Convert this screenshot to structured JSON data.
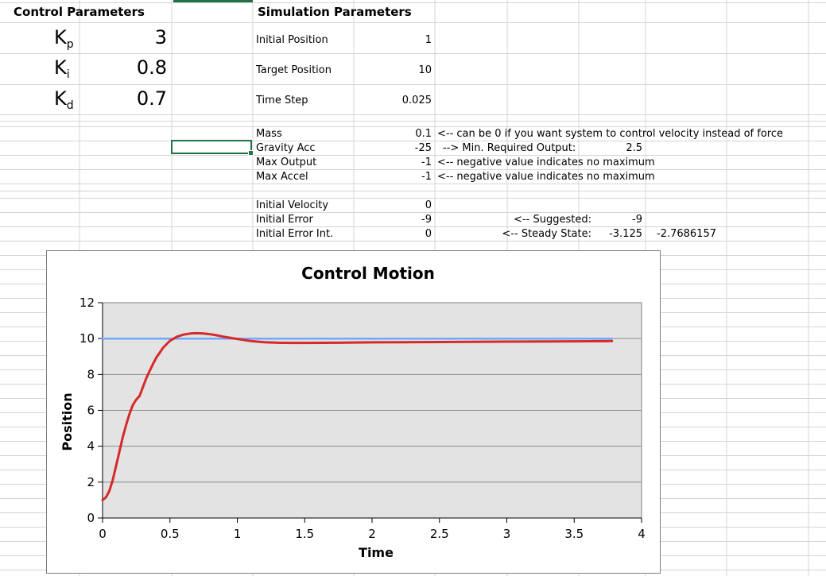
{
  "control": {
    "header": "Control Parameters",
    "params": [
      {
        "base": "K",
        "sub": "p",
        "value": "3"
      },
      {
        "base": "K",
        "sub": "i",
        "value": "0.8"
      },
      {
        "base": "K",
        "sub": "d",
        "value": "0.7"
      }
    ]
  },
  "simulation": {
    "header": "Simulation Parameters",
    "rows": [
      {
        "label": "Initial Position",
        "value": "1"
      },
      {
        "label": "Target Position",
        "value": "10"
      },
      {
        "label": "Time Step",
        "value": "0.025"
      }
    ],
    "physics": [
      {
        "label": "Mass",
        "value": "0.1",
        "note": "<-- can be 0 if you want system to control velocity instead of force"
      },
      {
        "label": "Gravity Acc",
        "value": "-25",
        "note": "--> Min. Required Output:",
        "extra": "2.5"
      },
      {
        "label": "Max Output",
        "value": "-1",
        "note": "<-- negative value indicates no maximum"
      },
      {
        "label": "Max Accel",
        "value": "-1",
        "note": "<-- negative value indicates no maximum"
      }
    ],
    "initial": [
      {
        "label": "Initial Velocity",
        "value": "0"
      },
      {
        "label": "Initial Error",
        "value": "-9",
        "note": "<-- Suggested:",
        "extra": "-9"
      },
      {
        "label": "Initial Error Int.",
        "value": "0",
        "note": "<-- Steady State:",
        "extra": "-3.125",
        "extra2": "-2.7686157"
      }
    ]
  },
  "colors": {
    "grid": "#d4d4d4",
    "selection": "#217346",
    "plot_bg": "#e3e3e3",
    "target_line": "#6fa8ff",
    "motion_line": "#d62a2a"
  },
  "chart_data": {
    "type": "line",
    "title": "Control Motion",
    "xlabel": "Time",
    "ylabel": "Position",
    "xlim": [
      0,
      4
    ],
    "ylim": [
      0,
      12
    ],
    "xticks": [
      "0",
      "0.5",
      "1",
      "1.5",
      "2",
      "2.5",
      "3",
      "3.5",
      "4"
    ],
    "yticks": [
      "0",
      "2",
      "4",
      "6",
      "8",
      "10",
      "12"
    ],
    "grid": true,
    "series": [
      {
        "color": "#6fa8ff",
        "x": [
          0,
          3.78
        ],
        "y": [
          10,
          10
        ]
      },
      {
        "color": "#d62a2a",
        "x": [
          0,
          0.025,
          0.05,
          0.075,
          0.1,
          0.125,
          0.15,
          0.175,
          0.2,
          0.225,
          0.25,
          0.275,
          0.3,
          0.325,
          0.35,
          0.375,
          0.4,
          0.45,
          0.5,
          0.55,
          0.6,
          0.65,
          0.7,
          0.75,
          0.8,
          0.85,
          0.9,
          1.0,
          1.1,
          1.2,
          1.3,
          1.4,
          1.5,
          1.75,
          2.0,
          2.5,
          3.0,
          3.5,
          3.78
        ],
        "y": [
          1.0,
          1.15,
          1.5,
          2.1,
          2.9,
          3.7,
          4.5,
          5.2,
          5.8,
          6.3,
          6.6,
          6.8,
          7.3,
          7.8,
          8.2,
          8.6,
          8.95,
          9.5,
          9.88,
          10.1,
          10.22,
          10.28,
          10.3,
          10.28,
          10.24,
          10.18,
          10.1,
          9.98,
          9.86,
          9.8,
          9.77,
          9.76,
          9.76,
          9.77,
          9.79,
          9.81,
          9.83,
          9.85,
          9.86
        ]
      }
    ]
  }
}
